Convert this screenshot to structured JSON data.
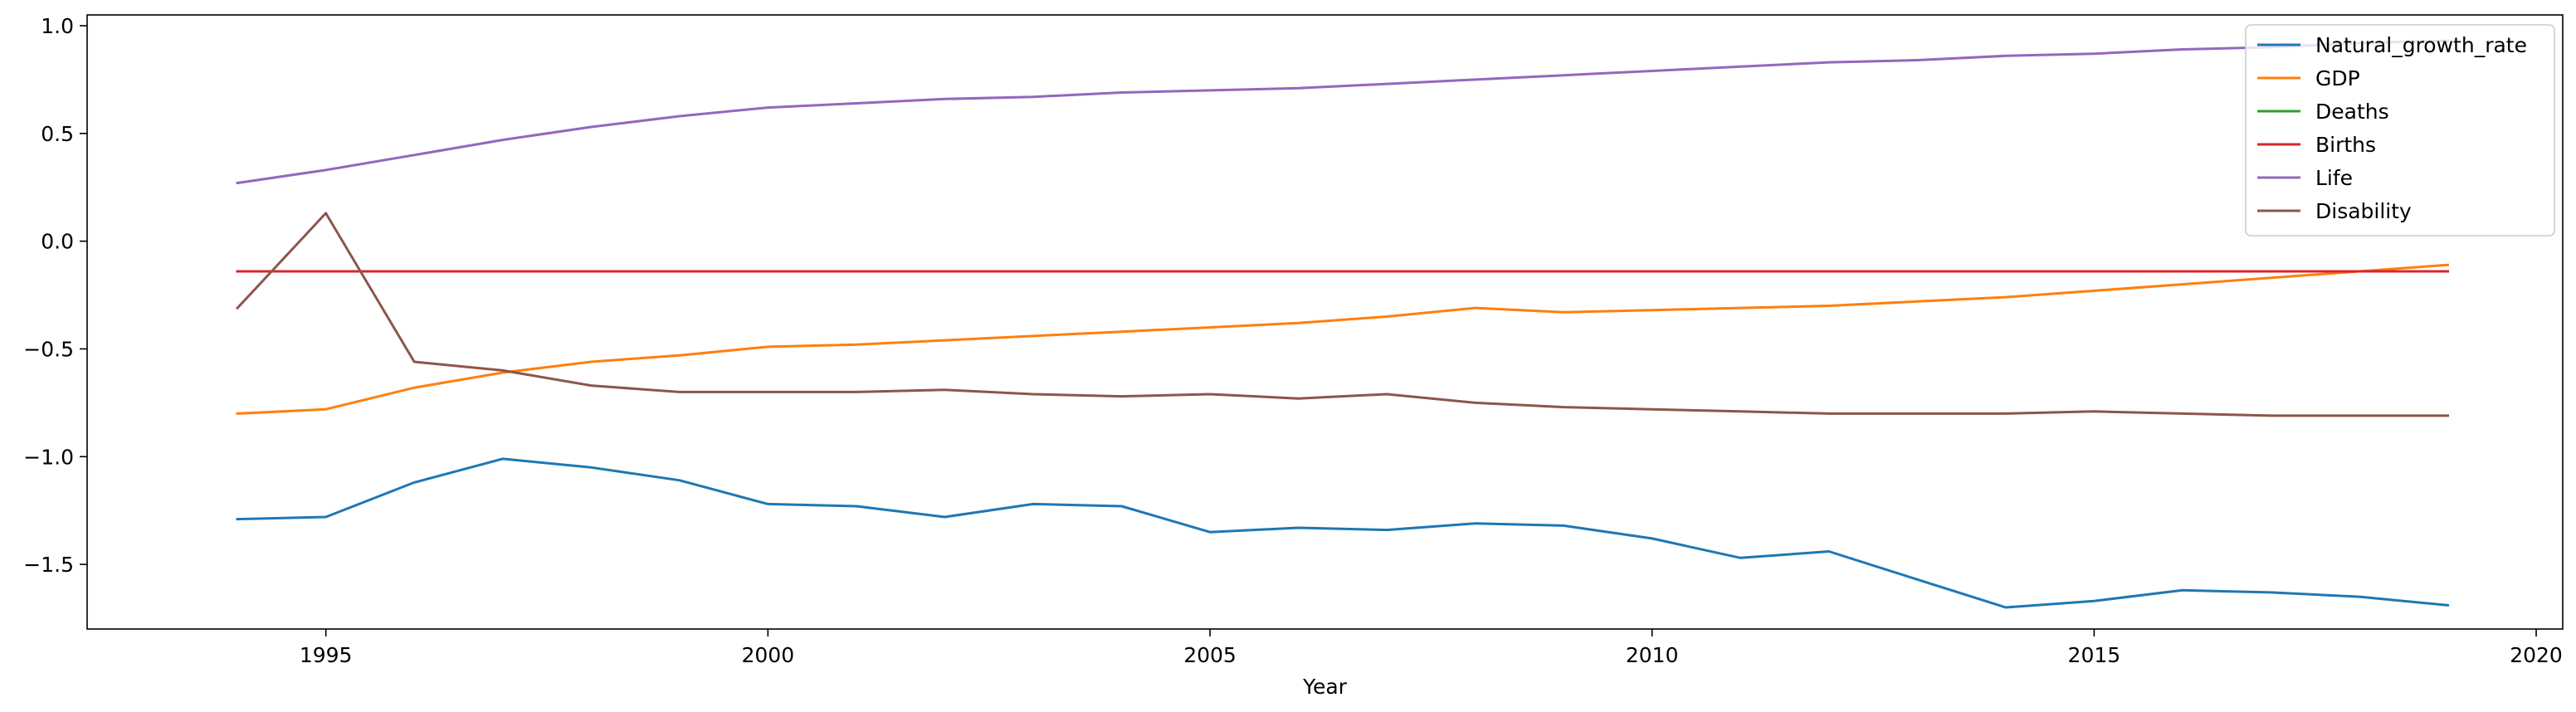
{
  "chart_data": {
    "type": "line",
    "title": "",
    "xlabel": "Year",
    "ylabel": "",
    "xlim": [
      1992.3,
      2020.3
    ],
    "ylim": [
      -1.8,
      1.05
    ],
    "xticks": [
      1995,
      2000,
      2005,
      2010,
      2015,
      2020
    ],
    "yticks": [
      -1.5,
      -1.0,
      -0.5,
      0.0,
      0.5,
      1.0
    ],
    "ytick_labels": [
      "−1.5",
      "−1.0",
      "−0.5",
      "0.0",
      "0.5",
      "1.0"
    ],
    "grid": false,
    "legend_position": "top-right",
    "x": [
      1994,
      1995,
      1996,
      1997,
      1998,
      1999,
      2000,
      2001,
      2002,
      2003,
      2004,
      2005,
      2006,
      2007,
      2008,
      2009,
      2010,
      2011,
      2012,
      2013,
      2014,
      2015,
      2016,
      2017,
      2018,
      2019
    ],
    "series": [
      {
        "name": "Natural_growth_rate",
        "color": "#1f77b4",
        "values": [
          -1.29,
          -1.28,
          -1.12,
          -1.01,
          -1.05,
          -1.11,
          -1.22,
          -1.23,
          -1.28,
          -1.22,
          -1.23,
          -1.35,
          -1.33,
          -1.34,
          -1.31,
          -1.32,
          -1.38,
          -1.47,
          -1.44,
          -1.57,
          -1.7,
          -1.67,
          -1.62,
          -1.63,
          -1.65,
          -1.69
        ]
      },
      {
        "name": "GDP",
        "color": "#ff7f0e",
        "values": [
          -0.8,
          -0.78,
          -0.68,
          -0.61,
          -0.56,
          -0.53,
          -0.49,
          -0.48,
          -0.46,
          -0.44,
          -0.42,
          -0.4,
          -0.38,
          -0.35,
          -0.31,
          -0.33,
          -0.32,
          -0.31,
          -0.3,
          -0.28,
          -0.26,
          -0.23,
          -0.2,
          -0.17,
          -0.14,
          -0.11
        ]
      },
      {
        "name": "Deaths",
        "color": "#2ca02c",
        "values": [
          -0.14,
          -0.14,
          -0.14,
          -0.14,
          -0.14,
          -0.14,
          -0.14,
          -0.14,
          -0.14,
          -0.14,
          -0.14,
          -0.14,
          -0.14,
          -0.14,
          -0.14,
          -0.14,
          -0.14,
          -0.14,
          -0.14,
          -0.14,
          -0.14,
          -0.14,
          -0.14,
          -0.14,
          -0.14,
          -0.14
        ]
      },
      {
        "name": "Births",
        "color": "#d62728",
        "values": [
          -0.14,
          -0.14,
          -0.14,
          -0.14,
          -0.14,
          -0.14,
          -0.14,
          -0.14,
          -0.14,
          -0.14,
          -0.14,
          -0.14,
          -0.14,
          -0.14,
          -0.14,
          -0.14,
          -0.14,
          -0.14,
          -0.14,
          -0.14,
          -0.14,
          -0.14,
          -0.14,
          -0.14,
          -0.14,
          -0.14
        ]
      },
      {
        "name": "Life",
        "color": "#9467bd",
        "values": [
          0.27,
          0.33,
          0.4,
          0.47,
          0.53,
          0.58,
          0.62,
          0.64,
          0.66,
          0.67,
          0.69,
          0.7,
          0.71,
          0.73,
          0.75,
          0.77,
          0.79,
          0.81,
          0.83,
          0.84,
          0.86,
          0.87,
          0.89,
          0.9,
          0.92,
          0.93
        ]
      },
      {
        "name": "Disability",
        "color": "#8c564b",
        "values": [
          -0.31,
          0.13,
          -0.56,
          -0.6,
          -0.67,
          -0.7,
          -0.7,
          -0.7,
          -0.69,
          -0.71,
          -0.72,
          -0.71,
          -0.73,
          -0.71,
          -0.75,
          -0.77,
          -0.78,
          -0.79,
          -0.8,
          -0.8,
          -0.8,
          -0.79,
          -0.8,
          -0.81,
          -0.81,
          -0.81
        ]
      }
    ]
  }
}
